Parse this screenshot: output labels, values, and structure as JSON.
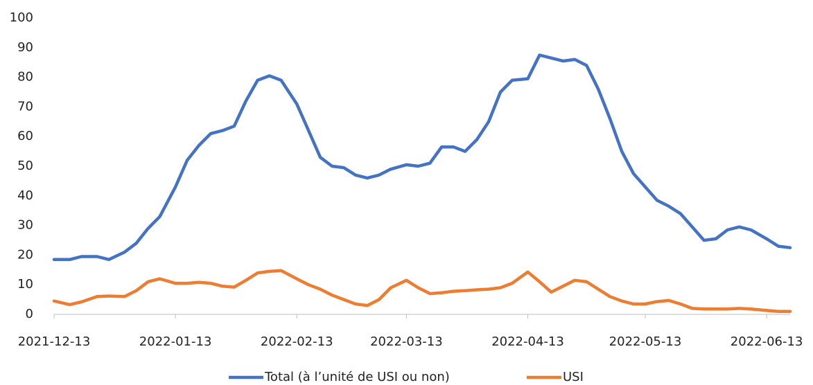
{
  "chart_data": {
    "type": "line",
    "x": [
      "2021-12-13",
      "2021-12-17",
      "2021-12-20",
      "2021-12-24",
      "2021-12-27",
      "2021-12-31",
      "2022-01-03",
      "2022-01-06",
      "2022-01-09",
      "2022-01-13",
      "2022-01-16",
      "2022-01-19",
      "2022-01-22",
      "2022-01-25",
      "2022-01-28",
      "2022-01-31",
      "2022-02-03",
      "2022-02-06",
      "2022-02-09",
      "2022-02-13",
      "2022-02-16",
      "2022-02-19",
      "2022-02-22",
      "2022-02-25",
      "2022-02-28",
      "2022-03-03",
      "2022-03-06",
      "2022-03-09",
      "2022-03-13",
      "2022-03-16",
      "2022-03-19",
      "2022-03-22",
      "2022-03-25",
      "2022-03-28",
      "2022-03-31",
      "2022-04-03",
      "2022-04-06",
      "2022-04-09",
      "2022-04-13",
      "2022-04-16",
      "2022-04-19",
      "2022-04-22",
      "2022-04-25",
      "2022-04-28",
      "2022-05-01",
      "2022-05-04",
      "2022-05-07",
      "2022-05-10",
      "2022-05-13",
      "2022-05-16",
      "2022-05-19",
      "2022-05-22",
      "2022-05-25",
      "2022-05-28",
      "2022-05-31",
      "2022-06-03",
      "2022-06-06",
      "2022-06-09",
      "2022-06-13",
      "2022-06-16",
      "2022-06-19"
    ],
    "series": [
      {
        "name": "Total (à l’unité de USI ou non)",
        "color": "#4472c4",
        "values": [
          18.5,
          18.5,
          19.5,
          19.5,
          18.5,
          21,
          24,
          29,
          33,
          43,
          52,
          57,
          61,
          62,
          63.5,
          72,
          79,
          80.5,
          79,
          71,
          62,
          53,
          50,
          49.5,
          47,
          46,
          47,
          49,
          50.5,
          50,
          51,
          56.5,
          56.5,
          55,
          59,
          65,
          75,
          79,
          79.5,
          87.5,
          86.5,
          85.5,
          86,
          84,
          76,
          66,
          55,
          47.5,
          43,
          38.5,
          36.5,
          34,
          29.5,
          25,
          25.5,
          28.5,
          29.5,
          28.5,
          25.5,
          23,
          22.5
        ]
      },
      {
        "name": "USI",
        "color": "#ed7d31",
        "values": [
          4.5,
          3.3,
          4.2,
          6,
          6.2,
          6,
          8,
          11,
          12,
          10.5,
          10.5,
          10.8,
          10.5,
          9.5,
          9.2,
          11.5,
          14,
          14.5,
          14.8,
          12,
          10,
          8.5,
          6.5,
          5,
          3.5,
          3,
          5,
          9,
          11.5,
          9,
          7,
          7.3,
          7.8,
          8,
          8.3,
          8.5,
          9,
          10.5,
          14.3,
          11,
          7.5,
          9.5,
          11.5,
          11,
          8.5,
          6,
          4.5,
          3.5,
          3.5,
          4.3,
          4.7,
          3.5,
          2,
          1.8,
          1.8,
          1.8,
          2,
          1.8,
          1.3,
          1,
          1
        ]
      }
    ],
    "xlim": [
      "2021-12-13",
      "2022-06-19"
    ],
    "xticks": [
      "2021-12-13",
      "2022-01-13",
      "2022-02-13",
      "2022-03-13",
      "2022-04-13",
      "2022-05-13",
      "2022-06-13"
    ],
    "ylim": [
      0,
      100
    ],
    "yticks": [
      0,
      10,
      20,
      30,
      40,
      50,
      60,
      70,
      80,
      90,
      100
    ],
    "legend": "bottom"
  }
}
